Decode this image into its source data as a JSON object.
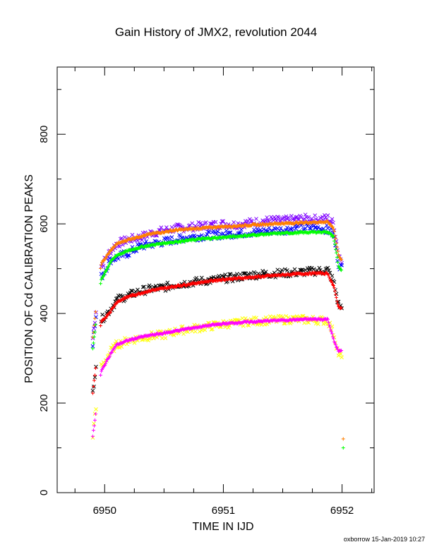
{
  "chart_data": {
    "type": "scatter",
    "title": "Gain History of JMX2, revolution 2044",
    "xlabel": "TIME IN IJD",
    "ylabel": "POSITION OF Cd CALIBRATION PEAKS",
    "xlim": [
      6949.6,
      6952.27
    ],
    "ylim": [
      0,
      950
    ],
    "x_ticks": [
      6950,
      6951,
      6952
    ],
    "y_ticks": [
      0,
      200,
      400,
      600,
      800
    ],
    "grid": false,
    "legend": "none",
    "series": [
      {
        "color": "#7f00ff",
        "marker": "x",
        "points": [
          [
            6949.9,
            345
          ],
          [
            6949.97,
            505
          ],
          [
            6950.05,
            540
          ],
          [
            6950.1,
            555
          ],
          [
            6950.2,
            565
          ],
          [
            6950.3,
            570
          ],
          [
            6950.4,
            580
          ],
          [
            6950.5,
            585
          ],
          [
            6950.6,
            590
          ],
          [
            6950.7,
            592
          ],
          [
            6950.8,
            595
          ],
          [
            6950.9,
            597
          ],
          [
            6951.0,
            600
          ],
          [
            6951.1,
            598
          ],
          [
            6951.2,
            602
          ],
          [
            6951.3,
            605
          ],
          [
            6951.4,
            608
          ],
          [
            6951.5,
            607
          ],
          [
            6951.6,
            610
          ],
          [
            6951.7,
            612
          ],
          [
            6951.8,
            610
          ],
          [
            6951.88,
            613
          ],
          [
            6951.93,
            600
          ],
          [
            6951.97,
            530
          ],
          [
            6952.0,
            520
          ]
        ]
      },
      {
        "color": "#0000ff",
        "marker": "x",
        "points": [
          [
            6949.9,
            335
          ],
          [
            6949.97,
            480
          ],
          [
            6950.05,
            520
          ],
          [
            6950.1,
            525
          ],
          [
            6950.2,
            535
          ],
          [
            6950.3,
            550
          ],
          [
            6950.4,
            555
          ],
          [
            6950.5,
            560
          ],
          [
            6950.6,
            565
          ],
          [
            6950.7,
            570
          ],
          [
            6950.8,
            572
          ],
          [
            6950.9,
            575
          ],
          [
            6951.0,
            576
          ],
          [
            6951.1,
            578
          ],
          [
            6951.2,
            580
          ],
          [
            6951.3,
            582
          ],
          [
            6951.4,
            585
          ],
          [
            6951.5,
            586
          ],
          [
            6951.6,
            590
          ],
          [
            6951.7,
            592
          ],
          [
            6951.8,
            590
          ],
          [
            6951.88,
            588
          ],
          [
            6951.93,
            575
          ],
          [
            6951.97,
            510
          ],
          [
            6952.0,
            500
          ]
        ]
      },
      {
        "color": "#000000",
        "marker": "x",
        "points": [
          [
            6949.9,
            225
          ],
          [
            6949.97,
            385
          ],
          [
            6950.05,
            410
          ],
          [
            6950.1,
            430
          ],
          [
            6950.2,
            440
          ],
          [
            6950.3,
            450
          ],
          [
            6950.4,
            455
          ],
          [
            6950.5,
            458
          ],
          [
            6950.6,
            465
          ],
          [
            6950.7,
            468
          ],
          [
            6950.8,
            472
          ],
          [
            6950.9,
            474
          ],
          [
            6951.0,
            478
          ],
          [
            6951.1,
            480
          ],
          [
            6951.2,
            485
          ],
          [
            6951.3,
            487
          ],
          [
            6951.4,
            489
          ],
          [
            6951.5,
            490
          ],
          [
            6951.6,
            491
          ],
          [
            6951.7,
            493
          ],
          [
            6951.8,
            495
          ],
          [
            6951.88,
            497
          ],
          [
            6951.93,
            470
          ],
          [
            6951.97,
            420
          ],
          [
            6952.0,
            410
          ]
        ]
      },
      {
        "color": "#ffff00",
        "marker": "x",
        "points": [
          [
            6949.9,
            130
          ],
          [
            6949.97,
            280
          ],
          [
            6950.05,
            315
          ],
          [
            6950.1,
            330
          ],
          [
            6950.2,
            340
          ],
          [
            6950.3,
            345
          ],
          [
            6950.4,
            350
          ],
          [
            6950.5,
            352
          ],
          [
            6950.6,
            360
          ],
          [
            6950.7,
            365
          ],
          [
            6950.8,
            368
          ],
          [
            6950.9,
            372
          ],
          [
            6951.0,
            376
          ],
          [
            6951.1,
            378
          ],
          [
            6951.2,
            382
          ],
          [
            6951.3,
            383
          ],
          [
            6951.4,
            385
          ],
          [
            6951.5,
            386
          ],
          [
            6951.6,
            387
          ],
          [
            6951.7,
            386
          ],
          [
            6951.8,
            385
          ],
          [
            6951.88,
            384
          ],
          [
            6951.93,
            355
          ],
          [
            6951.97,
            310
          ],
          [
            6952.0,
            300
          ]
        ]
      },
      {
        "color": "#ff7f00",
        "marker": "+",
        "points": [
          [
            6949.9,
            345
          ],
          [
            6949.97,
            510
          ],
          [
            6950.05,
            540
          ],
          [
            6950.1,
            555
          ],
          [
            6950.2,
            565
          ],
          [
            6950.3,
            572
          ],
          [
            6950.4,
            578
          ],
          [
            6950.5,
            582
          ],
          [
            6950.6,
            586
          ],
          [
            6950.7,
            588
          ],
          [
            6950.8,
            590
          ],
          [
            6950.9,
            592
          ],
          [
            6951.0,
            594
          ],
          [
            6951.1,
            595
          ],
          [
            6951.2,
            597
          ],
          [
            6951.3,
            598
          ],
          [
            6951.4,
            600
          ],
          [
            6951.5,
            601
          ],
          [
            6951.6,
            602
          ],
          [
            6951.7,
            603
          ],
          [
            6951.8,
            604
          ],
          [
            6951.88,
            604
          ],
          [
            6951.93,
            590
          ],
          [
            6951.97,
            530
          ],
          [
            6952.0,
            518
          ],
          [
            6952.01,
            120
          ]
        ]
      },
      {
        "color": "#00ff00",
        "marker": "+",
        "points": [
          [
            6949.9,
            320
          ],
          [
            6949.97,
            475
          ],
          [
            6950.05,
            515
          ],
          [
            6950.1,
            530
          ],
          [
            6950.2,
            540
          ],
          [
            6950.3,
            548
          ],
          [
            6950.4,
            553
          ],
          [
            6950.5,
            557
          ],
          [
            6950.6,
            560
          ],
          [
            6950.7,
            563
          ],
          [
            6950.8,
            566
          ],
          [
            6950.9,
            568
          ],
          [
            6951.0,
            570
          ],
          [
            6951.1,
            572
          ],
          [
            6951.2,
            574
          ],
          [
            6951.3,
            576
          ],
          [
            6951.4,
            578
          ],
          [
            6951.5,
            579
          ],
          [
            6951.6,
            580
          ],
          [
            6951.7,
            581
          ],
          [
            6951.8,
            582
          ],
          [
            6951.88,
            582
          ],
          [
            6951.93,
            570
          ],
          [
            6951.97,
            505
          ],
          [
            6952.0,
            495
          ],
          [
            6952.01,
            100
          ]
        ]
      },
      {
        "color": "#ff0000",
        "marker": "+",
        "points": [
          [
            6949.9,
            222
          ],
          [
            6949.97,
            380
          ],
          [
            6950.05,
            405
          ],
          [
            6950.1,
            425
          ],
          [
            6950.2,
            438
          ],
          [
            6950.3,
            445
          ],
          [
            6950.4,
            452
          ],
          [
            6950.5,
            456
          ],
          [
            6950.6,
            461
          ],
          [
            6950.7,
            465
          ],
          [
            6950.8,
            469
          ],
          [
            6950.9,
            473
          ],
          [
            6951.0,
            476
          ],
          [
            6951.1,
            478
          ],
          [
            6951.2,
            480
          ],
          [
            6951.3,
            482
          ],
          [
            6951.4,
            484
          ],
          [
            6951.5,
            486
          ],
          [
            6951.6,
            488
          ],
          [
            6951.7,
            489
          ],
          [
            6951.8,
            490
          ],
          [
            6951.88,
            489
          ],
          [
            6951.93,
            460
          ],
          [
            6951.97,
            415
          ],
          [
            6952.0,
            412
          ]
        ]
      },
      {
        "color": "#ff00ff",
        "marker": "+",
        "points": [
          [
            6949.9,
            125
          ],
          [
            6949.97,
            270
          ],
          [
            6950.05,
            310
          ],
          [
            6950.1,
            330
          ],
          [
            6950.2,
            340
          ],
          [
            6950.3,
            347
          ],
          [
            6950.4,
            352
          ],
          [
            6950.5,
            356
          ],
          [
            6950.6,
            361
          ],
          [
            6950.7,
            366
          ],
          [
            6950.8,
            370
          ],
          [
            6950.9,
            374
          ],
          [
            6951.0,
            377
          ],
          [
            6951.1,
            379
          ],
          [
            6951.2,
            381
          ],
          [
            6951.3,
            382
          ],
          [
            6951.4,
            384
          ],
          [
            6951.5,
            385
          ],
          [
            6951.6,
            386
          ],
          [
            6951.7,
            387
          ],
          [
            6951.8,
            387
          ],
          [
            6951.88,
            387
          ],
          [
            6951.93,
            340
          ],
          [
            6951.97,
            315
          ],
          [
            6952.0,
            318
          ]
        ]
      }
    ]
  },
  "footer": {
    "credit": "oxborrow 15-Jan-2019 10:27"
  }
}
